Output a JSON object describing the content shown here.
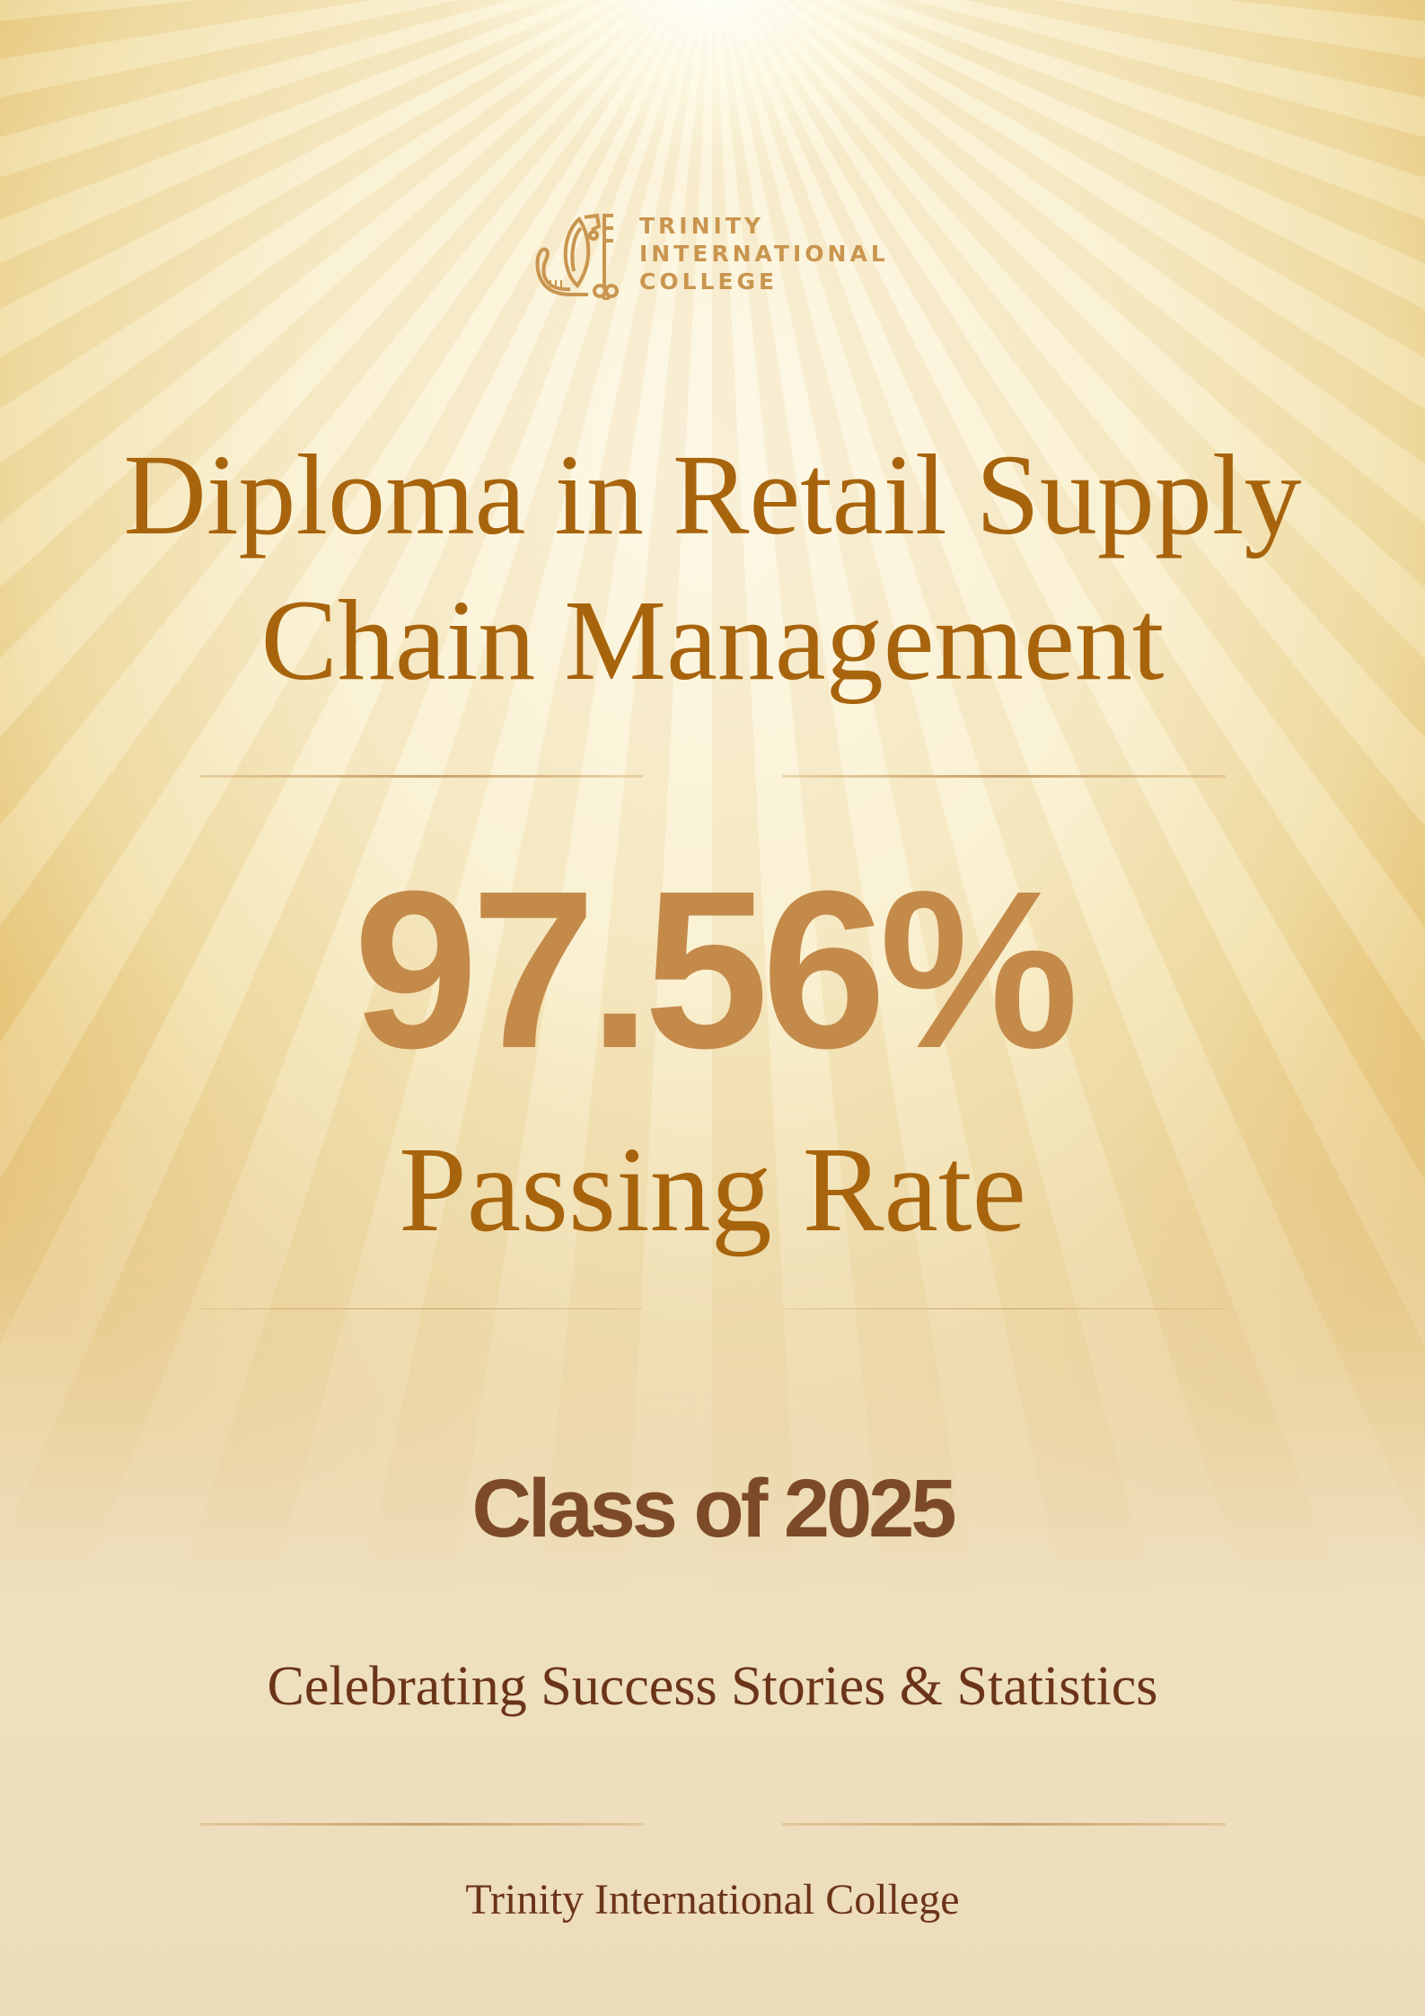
{
  "logo": {
    "lines": [
      "TRINITY",
      "INTERNATIONAL",
      "COLLEGE"
    ],
    "icon": "lion-key-crest-icon"
  },
  "title": {
    "line1": "Diploma in Retail Supply",
    "line2": "Chain Management"
  },
  "stat": {
    "value": "97.56%",
    "label": "Passing Rate"
  },
  "class_label": "Class of 2025",
  "tagline": "Celebrating Success Stories & Statistics",
  "footer": "Trinity International College",
  "colors": {
    "title": "#a8640d",
    "stat": "#c48a4a",
    "class": "#7d4a27",
    "tagline": "#6b3418"
  }
}
